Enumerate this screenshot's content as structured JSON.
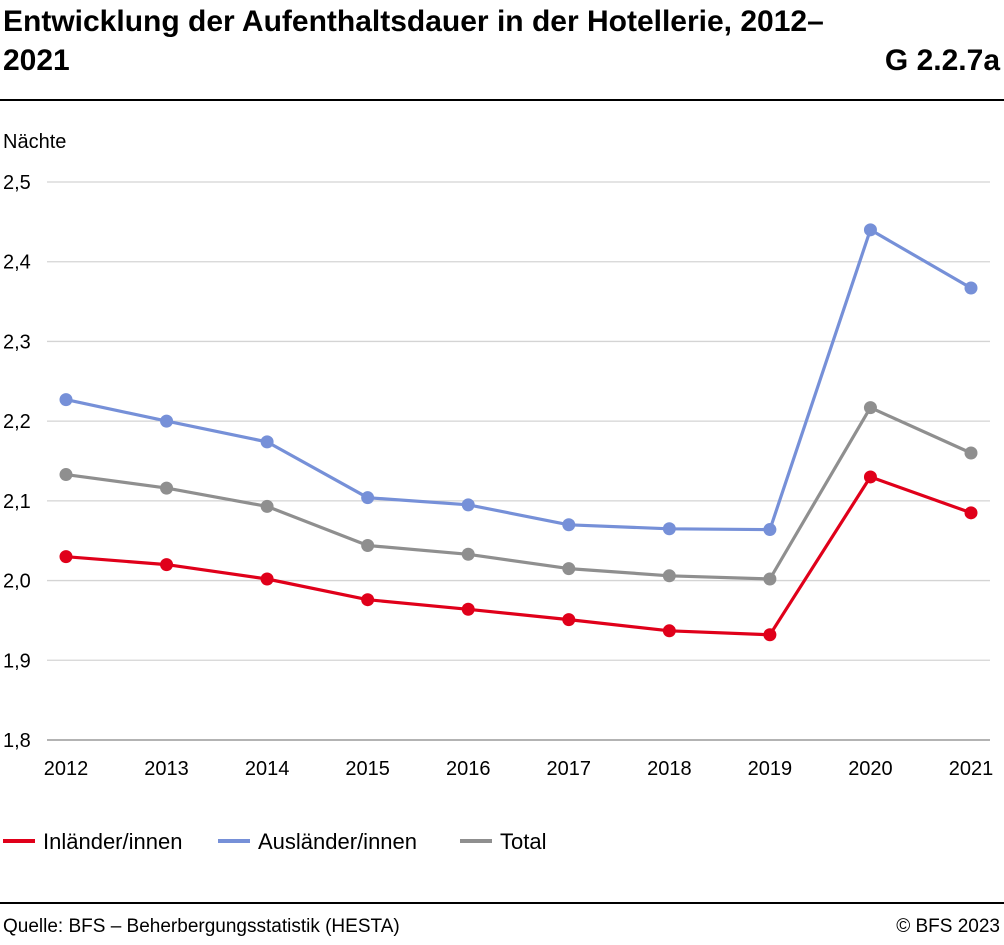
{
  "header": {
    "title": "Entwicklung der Aufenthaltsdauer in der Hotellerie, 2012–2021",
    "code": "G 2.2.7a"
  },
  "footer": {
    "source": "Quelle: BFS – Beherbergungsstatistik (HESTA)",
    "copyright": "© BFS 2023"
  },
  "chart_data": {
    "type": "line",
    "title": "Entwicklung der Aufenthaltsdauer in der Hotellerie, 2012–2021",
    "ylabel": "Nächte",
    "xlabel": "",
    "x": [
      "2012",
      "2013",
      "2014",
      "2015",
      "2016",
      "2017",
      "2018",
      "2019",
      "2020",
      "2021"
    ],
    "ylim": [
      1.8,
      2.5
    ],
    "yticks": [
      "1,8",
      "1,9",
      "2,0",
      "2,1",
      "2,2",
      "2,3",
      "2,4",
      "2,5"
    ],
    "grid": true,
    "legend_position": "bottom",
    "series": [
      {
        "name": "Inländer/innen",
        "color": "#e0001a",
        "values": [
          2.03,
          2.02,
          2.002,
          1.976,
          1.964,
          1.951,
          1.937,
          1.932,
          2.13,
          2.085
        ]
      },
      {
        "name": "Ausländer/innen",
        "color": "#7690d8",
        "values": [
          2.227,
          2.2,
          2.174,
          2.104,
          2.095,
          2.07,
          2.065,
          2.064,
          2.44,
          2.367
        ]
      },
      {
        "name": "Total",
        "color": "#8f8f8f",
        "values": [
          2.133,
          2.116,
          2.093,
          2.044,
          2.033,
          2.015,
          2.006,
          2.002,
          2.217,
          2.16
        ]
      }
    ]
  }
}
